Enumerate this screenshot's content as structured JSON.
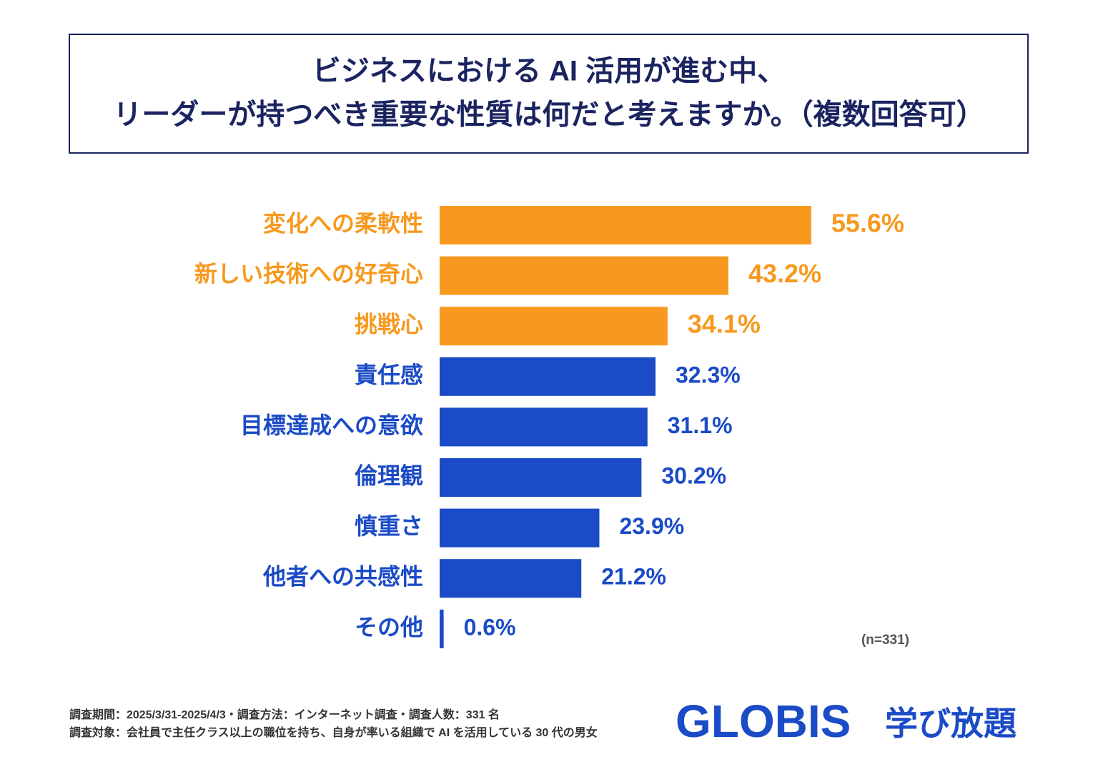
{
  "chart_data": {
    "type": "bar",
    "orientation": "horizontal",
    "title": [
      "ビジネスにおける AI 活用が進む中、",
      "リーダーが持つべき重要な性質は何だと考えますか。（複数回答可）"
    ],
    "categories": [
      "変化への柔軟性",
      "新しい技術への好奇心",
      "挑戦心",
      "責任感",
      "目標達成への意欲",
      "倫理観",
      "慎重さ",
      "他者への共感性",
      "その他"
    ],
    "values": [
      55.6,
      43.2,
      34.1,
      32.3,
      31.1,
      30.2,
      23.9,
      21.2,
      0.6
    ],
    "value_labels": [
      "55.6%",
      "43.2%",
      "34.1%",
      "32.3%",
      "31.1%",
      "30.2%",
      "23.9%",
      "21.2%",
      "0.6%"
    ],
    "colors": [
      "#f7991e",
      "#f7991e",
      "#f7991e",
      "#1b4bc6",
      "#1b4bc6",
      "#1b4bc6",
      "#1b4bc6",
      "#1b4bc6",
      "#1b4bc6"
    ],
    "annotation": "(n=331)",
    "footnotes": [
      "調査期間：2025/3/31-2025/4/3・調査方法：インターネット調査・調査人数：331 名",
      "調査対象：会社員で主任クラス以上の職位を持ち、自身が率いる組織で AI を活用している 30 代の男女"
    ],
    "logo": {
      "brand": "GLOBIS",
      "service": "学び放題"
    }
  }
}
